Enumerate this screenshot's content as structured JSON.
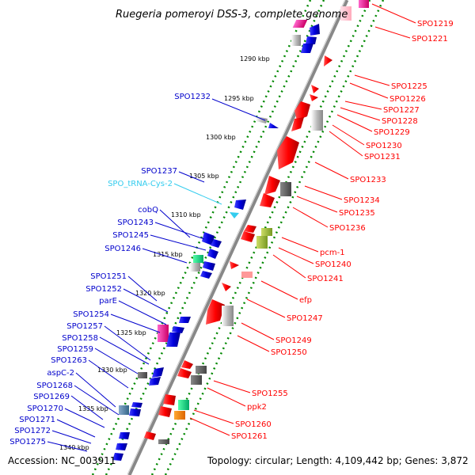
{
  "title": "Ruegeria pomeroyi DSS-3, complete genome",
  "accession": "Accession: NC_003911",
  "summary": "Topology: circular; Length: 4,109,442 bp; Genes: 3,872",
  "colors": {
    "forward": "#ff0000",
    "reverse": "#0000cc",
    "trna": "#33ccee",
    "backbone": "#888888",
    "track": "#008800"
  },
  "kbp_marks": [
    "1290 kbp",
    "1295 kbp",
    "1300 kbp",
    "1305 kbp",
    "1310 kbp",
    "1315 kbp",
    "1320 kbp",
    "1325 kbp",
    "1330 kbp",
    "1335 kbp",
    "1340 kbp"
  ],
  "left_labels": [
    "SPO1232",
    "SPO1237",
    "SPO_tRNA-Cys-2",
    "cobQ",
    "SPO1243",
    "SPO1245",
    "SPO1246",
    "SPO1251",
    "SPO1252",
    "parE",
    "SPO1254",
    "SPO1257",
    "SPO1258",
    "SPO1259",
    "SPO1263",
    "aspC-2",
    "SPO1268",
    "SPO1269",
    "SPO1270",
    "SPO1271",
    "SPO1272",
    "SPO1275"
  ],
  "right_labels": [
    "SPO1219",
    "SPO1221",
    "SPO1225",
    "SPO1226",
    "SPO1227",
    "SPO1228",
    "SPO1229",
    "SPO1230",
    "SPO1231",
    "SPO1233",
    "SPO1234",
    "SPO1235",
    "SPO1236",
    "pcm-1",
    "SPO1240",
    "SPO1241",
    "efp",
    "SPO1247",
    "SPO1249",
    "SPO1250",
    "SPO1255",
    "ppk2",
    "SPO1260",
    "SPO1261"
  ]
}
